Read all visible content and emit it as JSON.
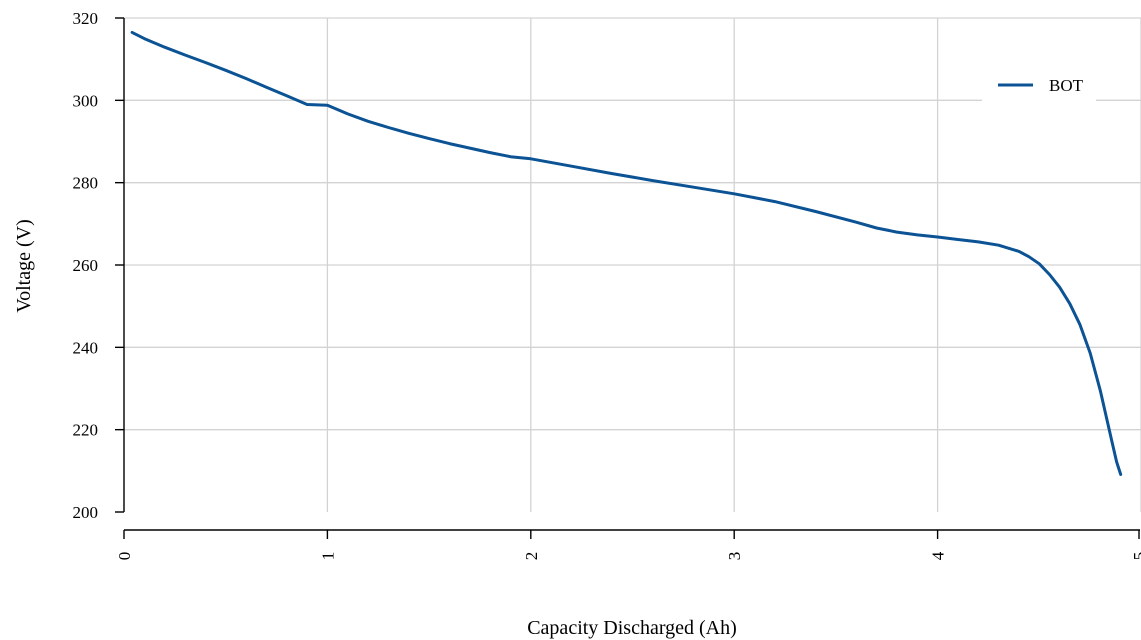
{
  "chart_data": {
    "type": "line",
    "title": "",
    "xlabel": "Capacity Discharged (Ah)",
    "ylabel": "Voltage (V)",
    "xlim": [
      0,
      5
    ],
    "ylim": [
      200,
      320
    ],
    "x_ticks": [
      0,
      1,
      2,
      3,
      4,
      5
    ],
    "x_tick_labels": [
      "0",
      "1",
      "2",
      "3",
      "4",
      "5"
    ],
    "y_ticks": [
      200,
      220,
      240,
      260,
      280,
      300,
      320
    ],
    "y_tick_labels": [
      "200",
      "220",
      "240",
      "260",
      "280",
      "300",
      "320"
    ],
    "grid": true,
    "legend_position": "top-right",
    "series": [
      {
        "name": "BOT",
        "color": "#0b5394",
        "x": [
          0.04,
          0.1,
          0.2,
          0.3,
          0.4,
          0.5,
          0.6,
          0.7,
          0.8,
          0.9,
          1.0,
          1.1,
          1.2,
          1.3,
          1.4,
          1.5,
          1.6,
          1.7,
          1.8,
          1.9,
          2.0,
          2.2,
          2.4,
          2.6,
          2.8,
          3.0,
          3.2,
          3.4,
          3.6,
          3.7,
          3.8,
          3.9,
          4.0,
          4.1,
          4.2,
          4.3,
          4.4,
          4.45,
          4.5,
          4.55,
          4.6,
          4.65,
          4.7,
          4.75,
          4.8,
          4.83,
          4.86,
          4.88,
          4.9
        ],
        "y": [
          316.5,
          315.0,
          312.9,
          311.0,
          309.2,
          307.3,
          305.3,
          303.2,
          301.1,
          299.0,
          298.8,
          296.7,
          294.9,
          293.4,
          292.0,
          290.7,
          289.5,
          288.4,
          287.3,
          286.3,
          285.8,
          284.0,
          282.2,
          280.5,
          278.9,
          277.3,
          275.4,
          273.0,
          270.4,
          269.0,
          268.0,
          267.3,
          266.8,
          266.2,
          265.6,
          264.8,
          263.3,
          262.0,
          260.3,
          257.7,
          254.6,
          250.6,
          245.5,
          238.6,
          229.5,
          223.0,
          216.5,
          212.2,
          209.1
        ]
      }
    ]
  }
}
